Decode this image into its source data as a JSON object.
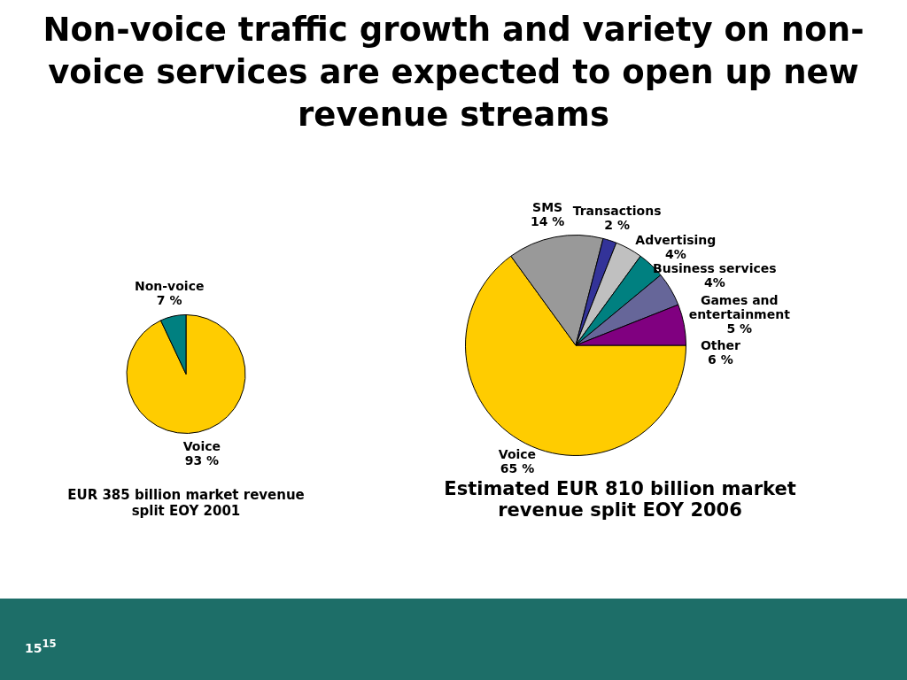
{
  "chart_data": [
    {
      "type": "pie",
      "title": "Non-voice traffic growth and variety on non-voice services are expected to open up new revenue streams",
      "subtitle": "EUR 385 billion market revenue split EOY 2001",
      "categories": [
        "Voice",
        "Non-voice"
      ],
      "values": [
        93,
        7
      ],
      "value_labels": [
        "93 %",
        "7 %"
      ],
      "colors": [
        "#ffcc00",
        "#008080"
      ],
      "legend": false
    },
    {
      "type": "pie",
      "title": "Estimated EUR 810 billion market revenue split EOY 2006",
      "categories": [
        "Voice",
        "SMS",
        "Transactions",
        "Advertising",
        "Business services",
        "Games and entertainment",
        "Other"
      ],
      "values": [
        65,
        14,
        2,
        4,
        4,
        5,
        6
      ],
      "value_labels": [
        "65 %",
        "14 %",
        "2 %",
        "4%",
        "4%",
        "5 %",
        "6 %"
      ],
      "colors": [
        "#ffcc00",
        "#999999",
        "#333399",
        "#c0c0c0",
        "#008080",
        "#666699",
        "#800080"
      ],
      "legend": false,
      "annotations": [
        "15$^{15}$"
      ]
    }
  ]
}
